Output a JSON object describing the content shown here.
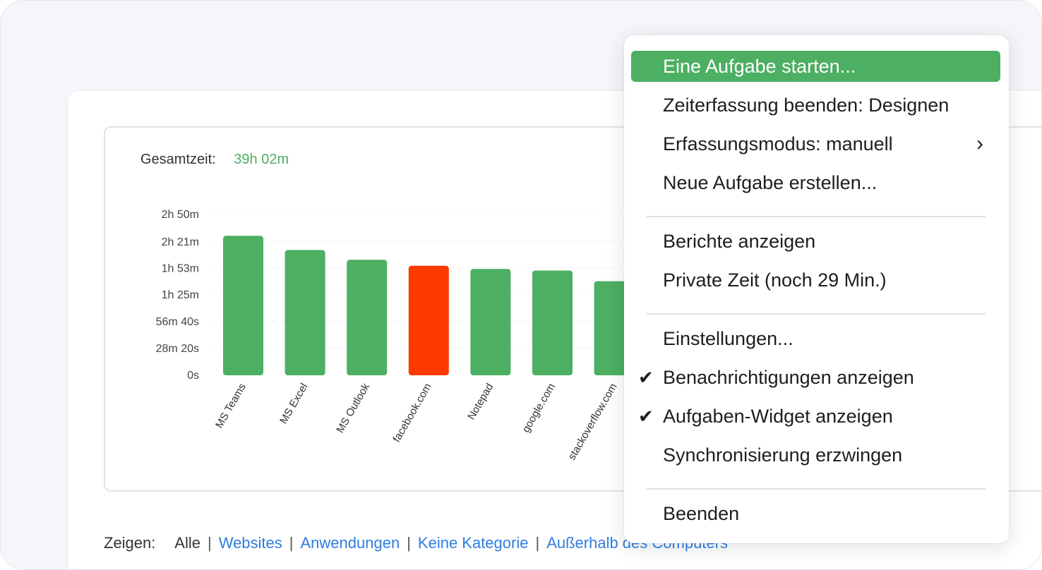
{
  "total": {
    "label": "Gesamtzeit:",
    "value": "39h 02m"
  },
  "chart_data": {
    "type": "bar",
    "categories": [
      "MS Teams",
      "MS Excel",
      "MS Outlook",
      "facebook.com",
      "Notepad",
      "google.com",
      "stackoverflow.com"
    ],
    "values": [
      8800,
      7900,
      7280,
      6900,
      6700,
      6600,
      5920
    ],
    "value_unit": "seconds",
    "colors": [
      "#4caf62",
      "#4caf62",
      "#4caf62",
      "#ff3a00",
      "#4caf62",
      "#4caf62",
      "#4caf62"
    ],
    "yticks": [
      0,
      1700,
      3400,
      5100,
      6780,
      8460,
      10200
    ],
    "ytick_labels": [
      "0s",
      "28m 20s",
      "56m 40s",
      "1h 25m",
      "1h 53m",
      "2h 21m",
      "2h 50m"
    ],
    "ylim": [
      0,
      10200
    ],
    "title": "",
    "xlabel": "",
    "ylabel": ""
  },
  "footer": {
    "label": "Zeigen:",
    "items": [
      {
        "text": "Alle",
        "link": false
      },
      {
        "text": "Websites",
        "link": true
      },
      {
        "text": "Anwendungen",
        "link": true
      },
      {
        "text": "Keine Kategorie",
        "link": true
      },
      {
        "text": "Außerhalb des Computers",
        "link": true
      }
    ]
  },
  "menu": {
    "items": [
      {
        "name": "menu-item-start-task",
        "label": "Eine Aufgabe starten...",
        "active": true
      },
      {
        "name": "menu-item-stop-tracking",
        "label": "Zeiterfassung beenden: Designen"
      },
      {
        "name": "menu-item-tracking-mode",
        "label": "Erfassungsmodus: manuell",
        "submenu": true
      },
      {
        "name": "menu-item-new-task",
        "label": "Neue Aufgabe erstellen..."
      },
      {
        "divider": true
      },
      {
        "name": "menu-item-reports",
        "label": "Berichte anzeigen"
      },
      {
        "name": "menu-item-private-time",
        "label": "Private Zeit (noch 29 Min.)"
      },
      {
        "divider": true
      },
      {
        "name": "menu-item-settings",
        "label": "Einstellungen..."
      },
      {
        "name": "menu-item-notifications",
        "label": "Benachrichtigungen anzeigen",
        "checked": true
      },
      {
        "name": "menu-item-task-widget",
        "label": "Aufgaben-Widget anzeigen",
        "checked": true
      },
      {
        "name": "menu-item-force-sync",
        "label": "Synchronisierung erzwingen"
      },
      {
        "divider": true
      },
      {
        "name": "menu-item-quit",
        "label": "Beenden"
      }
    ]
  },
  "icons": {
    "check": "checkmark-icon",
    "submenu": "chevron-right-icon"
  }
}
